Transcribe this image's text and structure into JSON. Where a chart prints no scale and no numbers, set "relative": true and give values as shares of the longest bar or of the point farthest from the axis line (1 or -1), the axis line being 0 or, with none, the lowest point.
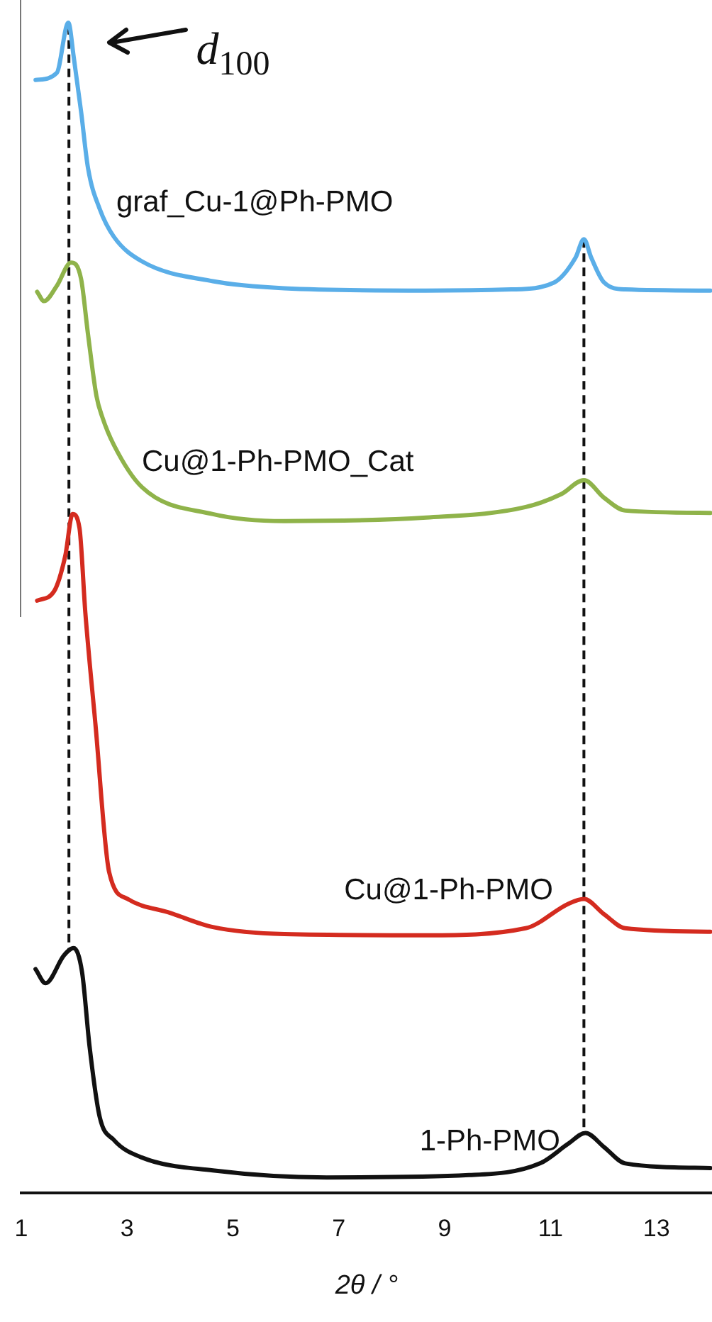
{
  "chart_data": {
    "type": "line",
    "relative": true,
    "xlabel": "2θ / °",
    "xlim": [
      1,
      14.05
    ],
    "xticks": [
      1,
      3,
      5,
      7,
      9,
      11,
      13
    ],
    "grid": false,
    "legend": false,
    "marker": "none",
    "line_style": "solid",
    "series": [
      {
        "name": "graf_Cu-1@Ph-PMO",
        "color": "#5aaee8",
        "x": [
          1.27,
          1.67,
          1.89,
          1.99,
          2.13,
          2.26,
          2.48,
          2.75,
          3.28,
          4.62,
          5.97,
          8.65,
          10.26,
          11.07,
          11.47,
          11.63,
          11.77,
          12.01,
          12.41,
          14.02
        ],
        "values": [
          0.951,
          0.957,
          1.0,
          0.971,
          0.924,
          0.876,
          0.841,
          0.817,
          0.796,
          0.779,
          0.773,
          0.771,
          0.772,
          0.778,
          0.799,
          0.815,
          0.799,
          0.778,
          0.772,
          0.771
        ]
      },
      {
        "name": "Cu@1-Ph-PMO_Cat",
        "color": "#8fb34a",
        "x": [
          1.3,
          1.43,
          1.67,
          1.94,
          2.13,
          2.26,
          2.42,
          2.53,
          2.75,
          3.28,
          4.62,
          5.97,
          8.65,
          10.53,
          11.2,
          11.63,
          12.01,
          12.41,
          14.02
        ],
        "values": [
          0.77,
          0.762,
          0.775,
          0.795,
          0.781,
          0.734,
          0.681,
          0.663,
          0.639,
          0.603,
          0.58,
          0.574,
          0.577,
          0.586,
          0.597,
          0.609,
          0.594,
          0.583,
          0.581
        ]
      },
      {
        "name": "Cu@1-Ph-PMO",
        "color": "#d42b1f",
        "x": [
          1.3,
          1.62,
          1.83,
          1.97,
          2.1,
          2.21,
          2.4,
          2.66,
          3.01,
          3.82,
          4.62,
          5.97,
          8.65,
          10.53,
          11.34,
          11.63,
          12.01,
          12.41,
          14.02
        ],
        "values": [
          0.506,
          0.514,
          0.544,
          0.58,
          0.568,
          0.496,
          0.401,
          0.274,
          0.251,
          0.239,
          0.227,
          0.221,
          0.22,
          0.226,
          0.247,
          0.251,
          0.238,
          0.226,
          0.223
        ]
      },
      {
        "name": "1-Ph-PMO",
        "color": "#111111",
        "x": [
          1.27,
          1.46,
          1.81,
          1.99,
          2.15,
          2.29,
          2.48,
          2.75,
          3.28,
          4.62,
          6.77,
          9.46,
          10.8,
          11.34,
          11.66,
          12.01,
          12.41,
          14.02
        ],
        "values": [
          0.191,
          0.179,
          0.203,
          0.209,
          0.188,
          0.125,
          0.065,
          0.045,
          0.03,
          0.019,
          0.013,
          0.015,
          0.025,
          0.042,
          0.051,
          0.039,
          0.025,
          0.021
        ]
      }
    ],
    "ref_lines": [
      {
        "axis": "x",
        "value": 1.9,
        "color": "#111111",
        "line_style": "dashed"
      },
      {
        "axis": "x",
        "value": 11.63,
        "color": "#111111",
        "line_style": "dashed"
      }
    ],
    "annotations": [
      {
        "text": "d$_{100}$",
        "x": 1.89,
        "y": 1.0
      }
    ]
  }
}
